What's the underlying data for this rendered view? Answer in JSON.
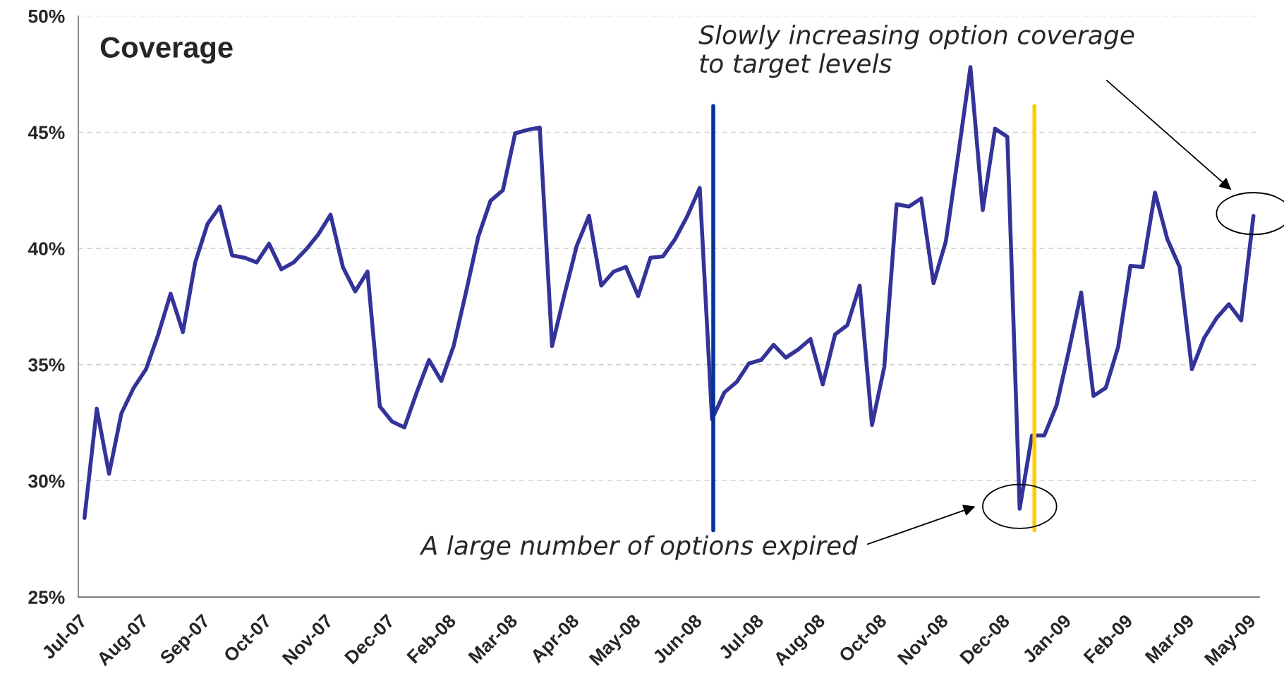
{
  "chart_data": {
    "type": "line",
    "title": "Coverage",
    "categories": [
      "Jul-07",
      null,
      null,
      null,
      null,
      "Aug-07",
      null,
      null,
      null,
      null,
      "Sep-07",
      null,
      null,
      null,
      null,
      "Oct-07",
      null,
      null,
      null,
      null,
      "Nov-07",
      null,
      null,
      null,
      null,
      "Dec-07",
      null,
      null,
      null,
      null,
      "Feb-08",
      null,
      null,
      null,
      null,
      "Mar-08",
      null,
      null,
      null,
      null,
      "Apr-08",
      null,
      null,
      null,
      null,
      "May-08",
      null,
      null,
      null,
      null,
      "Jun-08",
      null,
      null,
      null,
      null,
      "Jul-08",
      null,
      null,
      null,
      null,
      "Aug-08",
      null,
      null,
      null,
      null,
      "Oct-08",
      null,
      null,
      null,
      null,
      "Nov-08",
      null,
      null,
      null,
      null,
      "Dec-08",
      null,
      null,
      null,
      null,
      "Jan-09",
      null,
      null,
      null,
      null,
      "Feb-09",
      null,
      null,
      null,
      null,
      "Mar-09",
      null,
      null,
      null,
      null,
      "May-09"
    ],
    "series": [
      {
        "color": "#333399",
        "values": [
          28.4,
          33.1,
          30.3,
          32.9,
          34.0,
          34.8,
          36.3,
          38.05,
          36.4,
          39.4,
          41.05,
          41.8,
          39.7,
          39.6,
          39.4,
          40.2,
          39.1,
          39.4,
          39.95,
          40.6,
          41.45,
          39.2,
          38.15,
          39.0,
          33.2,
          32.55,
          32.3,
          33.8,
          35.2,
          34.3,
          35.8,
          38.1,
          40.5,
          42.05,
          42.5,
          44.95,
          45.1,
          45.2,
          35.8,
          38.0,
          40.1,
          41.4,
          38.4,
          39.0,
          39.2,
          37.95,
          39.6,
          39.65,
          40.4,
          41.4,
          42.6,
          32.65,
          33.8,
          34.25,
          35.05,
          35.2,
          35.85,
          35.3,
          35.65,
          36.1,
          34.15,
          36.3,
          36.7,
          38.4,
          32.4,
          34.9,
          41.9,
          41.8,
          42.15,
          38.5,
          40.3,
          44.0,
          47.8,
          41.65,
          45.15,
          44.8,
          28.8,
          31.95,
          31.95,
          33.25,
          35.6,
          38.1,
          33.65,
          34.0,
          35.75,
          39.25,
          39.2,
          42.4,
          40.4,
          39.2,
          34.8,
          36.15,
          37.0,
          37.6,
          36.9,
          41.4
        ]
      }
    ],
    "ylim": [
      25,
      50
    ],
    "yticks": [
      {
        "value": 25,
        "label": "25%"
      },
      {
        "value": 30,
        "label": "30%"
      },
      {
        "value": 35,
        "label": "35%"
      },
      {
        "value": 40,
        "label": "40%"
      },
      {
        "value": 45,
        "label": "45%"
      },
      {
        "value": 50,
        "label": "50%"
      }
    ],
    "grid": "y",
    "annotations": [
      "Slowly increasing option coverage\nto target levels",
      "A large number of options expired"
    ]
  }
}
